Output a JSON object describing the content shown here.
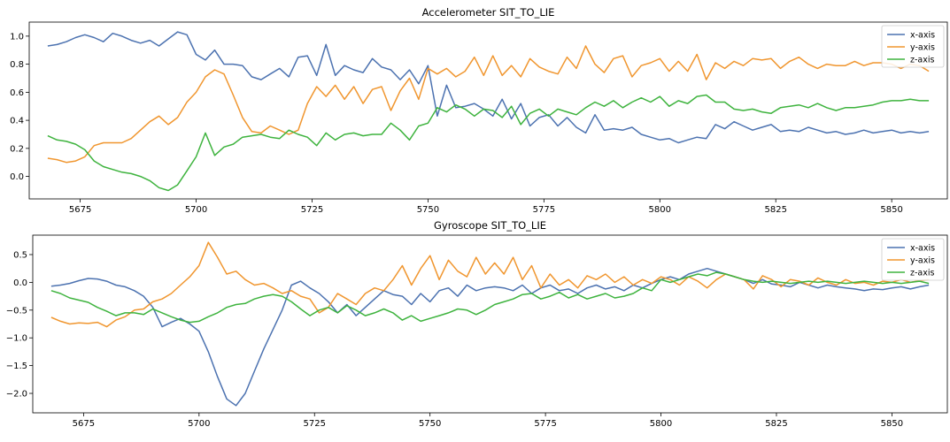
{
  "chart_data": [
    {
      "type": "line",
      "title": "Accelerometer SIT_TO_LIE",
      "xlabel": "",
      "ylabel": "",
      "xlim": [
        5664,
        5862
      ],
      "ylim": [
        -0.16,
        1.1
      ],
      "xticks": [
        5675,
        5700,
        5725,
        5750,
        5775,
        5800,
        5825,
        5850
      ],
      "yticks": [
        0.0,
        0.2,
        0.4,
        0.6,
        0.8,
        1.0
      ],
      "ytick_labels": [
        "0.0",
        "0.2",
        "0.4",
        "0.6",
        "0.8",
        "1.0"
      ],
      "grid": false,
      "legend": "top-right",
      "x": [
        5668,
        5670,
        5672,
        5674,
        5676,
        5678,
        5680,
        5682,
        5684,
        5686,
        5688,
        5690,
        5692,
        5694,
        5696,
        5698,
        5700,
        5702,
        5704,
        5706,
        5708,
        5710,
        5712,
        5714,
        5716,
        5718,
        5720,
        5722,
        5724,
        5726,
        5728,
        5730,
        5732,
        5734,
        5736,
        5738,
        5740,
        5742,
        5744,
        5746,
        5748,
        5750,
        5752,
        5754,
        5756,
        5758,
        5760,
        5762,
        5764,
        5766,
        5768,
        5770,
        5772,
        5774,
        5776,
        5778,
        5780,
        5782,
        5784,
        5786,
        5788,
        5790,
        5792,
        5794,
        5796,
        5798,
        5800,
        5802,
        5804,
        5806,
        5808,
        5810,
        5812,
        5814,
        5816,
        5818,
        5820,
        5822,
        5824,
        5826,
        5828,
        5830,
        5832,
        5834,
        5836,
        5838,
        5840,
        5842,
        5844,
        5846,
        5848,
        5850,
        5852,
        5854,
        5856,
        5858
      ],
      "series": [
        {
          "name": "x-axis",
          "color": "#4c72b0",
          "values": [
            0.93,
            0.94,
            0.96,
            0.99,
            1.01,
            0.99,
            0.96,
            1.02,
            1.0,
            0.97,
            0.95,
            0.97,
            0.93,
            0.98,
            1.03,
            1.01,
            0.87,
            0.83,
            0.9,
            0.8,
            0.8,
            0.79,
            0.71,
            0.69,
            0.73,
            0.77,
            0.71,
            0.85,
            0.86,
            0.72,
            0.94,
            0.72,
            0.79,
            0.76,
            0.74,
            0.84,
            0.78,
            0.76,
            0.69,
            0.76,
            0.66,
            0.79,
            0.43,
            0.65,
            0.49,
            0.5,
            0.52,
            0.48,
            0.43,
            0.55,
            0.41,
            0.52,
            0.36,
            0.42,
            0.44,
            0.36,
            0.42,
            0.35,
            0.31,
            0.44,
            0.33,
            0.34,
            0.33,
            0.35,
            0.3,
            0.28,
            0.26,
            0.27,
            0.24,
            0.26,
            0.28,
            0.27,
            0.37,
            0.34,
            0.39,
            0.36,
            0.33,
            0.35,
            0.37,
            0.32,
            0.33,
            0.32,
            0.35,
            0.33,
            0.31,
            0.32,
            0.3,
            0.31,
            0.33,
            0.31,
            0.32,
            0.33,
            0.31,
            0.32,
            0.31,
            0.32
          ]
        },
        {
          "name": "y-axis",
          "color": "#f0962f",
          "values": [
            0.13,
            0.12,
            0.1,
            0.11,
            0.14,
            0.22,
            0.24,
            0.24,
            0.24,
            0.27,
            0.33,
            0.39,
            0.43,
            0.37,
            0.42,
            0.53,
            0.6,
            0.71,
            0.76,
            0.73,
            0.58,
            0.42,
            0.32,
            0.31,
            0.36,
            0.33,
            0.3,
            0.33,
            0.52,
            0.64,
            0.57,
            0.65,
            0.55,
            0.64,
            0.52,
            0.62,
            0.64,
            0.47,
            0.61,
            0.7,
            0.55,
            0.77,
            0.73,
            0.77,
            0.71,
            0.75,
            0.85,
            0.72,
            0.86,
            0.72,
            0.79,
            0.71,
            0.84,
            0.78,
            0.75,
            0.73,
            0.85,
            0.77,
            0.93,
            0.8,
            0.74,
            0.84,
            0.86,
            0.71,
            0.79,
            0.81,
            0.84,
            0.75,
            0.82,
            0.75,
            0.87,
            0.69,
            0.81,
            0.77,
            0.82,
            0.79,
            0.84,
            0.83,
            0.84,
            0.77,
            0.82,
            0.85,
            0.8,
            0.77,
            0.8,
            0.79,
            0.79,
            0.82,
            0.79,
            0.81,
            0.81,
            0.8,
            0.77,
            0.8,
            0.79,
            0.75
          ]
        },
        {
          "name": "z-axis",
          "color": "#3eb33e",
          "values": [
            0.29,
            0.26,
            0.25,
            0.23,
            0.19,
            0.11,
            0.07,
            0.05,
            0.03,
            0.02,
            0.0,
            -0.03,
            -0.08,
            -0.1,
            -0.06,
            0.04,
            0.14,
            0.31,
            0.15,
            0.21,
            0.23,
            0.28,
            0.29,
            0.3,
            0.28,
            0.27,
            0.33,
            0.3,
            0.28,
            0.22,
            0.31,
            0.26,
            0.3,
            0.31,
            0.29,
            0.3,
            0.3,
            0.38,
            0.33,
            0.26,
            0.36,
            0.38,
            0.49,
            0.46,
            0.51,
            0.48,
            0.43,
            0.48,
            0.47,
            0.42,
            0.5,
            0.37,
            0.45,
            0.48,
            0.43,
            0.48,
            0.46,
            0.44,
            0.49,
            0.53,
            0.5,
            0.54,
            0.49,
            0.53,
            0.56,
            0.53,
            0.57,
            0.5,
            0.54,
            0.52,
            0.57,
            0.58,
            0.53,
            0.53,
            0.48,
            0.47,
            0.48,
            0.46,
            0.45,
            0.49,
            0.5,
            0.51,
            0.49,
            0.52,
            0.49,
            0.47,
            0.49,
            0.49,
            0.5,
            0.51,
            0.53,
            0.54,
            0.54,
            0.55,
            0.54,
            0.54
          ]
        }
      ]
    },
    {
      "type": "line",
      "title": "Gyroscope SIT_TO_LIE",
      "xlabel": "",
      "ylabel": "",
      "xlim": [
        5664,
        5862
      ],
      "ylim": [
        -2.35,
        0.85
      ],
      "xticks": [
        5675,
        5700,
        5725,
        5750,
        5775,
        5800,
        5825,
        5850
      ],
      "yticks": [
        -2.0,
        -1.5,
        -1.0,
        -0.5,
        0.0,
        0.5
      ],
      "ytick_labels": [
        "−2.0",
        "−1.5",
        "−1.0",
        "−0.5",
        "0.0",
        "0.5"
      ],
      "grid": false,
      "legend": "top-right",
      "x": [
        5668,
        5670,
        5672,
        5674,
        5676,
        5678,
        5680,
        5682,
        5684,
        5686,
        5688,
        5690,
        5692,
        5694,
        5696,
        5698,
        5700,
        5702,
        5704,
        5706,
        5708,
        5710,
        5712,
        5714,
        5716,
        5718,
        5720,
        5722,
        5724,
        5726,
        5728,
        5730,
        5732,
        5734,
        5736,
        5738,
        5740,
        5742,
        5744,
        5746,
        5748,
        5750,
        5752,
        5754,
        5756,
        5758,
        5760,
        5762,
        5764,
        5766,
        5768,
        5770,
        5772,
        5774,
        5776,
        5778,
        5780,
        5782,
        5784,
        5786,
        5788,
        5790,
        5792,
        5794,
        5796,
        5798,
        5800,
        5802,
        5804,
        5806,
        5808,
        5810,
        5812,
        5814,
        5816,
        5818,
        5820,
        5822,
        5824,
        5826,
        5828,
        5830,
        5832,
        5834,
        5836,
        5838,
        5840,
        5842,
        5844,
        5846,
        5848,
        5850,
        5852,
        5854,
        5856,
        5858
      ],
      "series": [
        {
          "name": "x-axis",
          "color": "#4c72b0",
          "values": [
            -0.07,
            -0.05,
            -0.02,
            0.03,
            0.07,
            0.06,
            0.02,
            -0.05,
            -0.08,
            -0.15,
            -0.25,
            -0.45,
            -0.8,
            -0.72,
            -0.65,
            -0.75,
            -0.88,
            -1.25,
            -1.7,
            -2.1,
            -2.22,
            -2.0,
            -1.6,
            -1.2,
            -0.85,
            -0.5,
            -0.05,
            0.02,
            -0.1,
            -0.2,
            -0.35,
            -0.55,
            -0.4,
            -0.6,
            -0.45,
            -0.3,
            -0.15,
            -0.22,
            -0.25,
            -0.4,
            -0.2,
            -0.35,
            -0.15,
            -0.1,
            -0.25,
            -0.05,
            -0.15,
            -0.1,
            -0.08,
            -0.1,
            -0.15,
            -0.05,
            -0.2,
            -0.1,
            -0.05,
            -0.15,
            -0.12,
            -0.2,
            -0.1,
            -0.05,
            -0.12,
            -0.08,
            -0.15,
            -0.05,
            -0.1,
            -0.02,
            0.05,
            0.1,
            0.05,
            0.15,
            0.2,
            0.25,
            0.2,
            0.15,
            0.1,
            0.05,
            -0.02,
            0.05,
            -0.03,
            -0.05,
            -0.08,
            0.0,
            -0.05,
            -0.1,
            -0.05,
            -0.08,
            -0.1,
            -0.12,
            -0.15,
            -0.12,
            -0.13,
            -0.1,
            -0.08,
            -0.12,
            -0.08,
            -0.05
          ]
        },
        {
          "name": "y-axis",
          "color": "#f0962f",
          "values": [
            -0.63,
            -0.7,
            -0.75,
            -0.73,
            -0.74,
            -0.72,
            -0.8,
            -0.68,
            -0.62,
            -0.5,
            -0.48,
            -0.35,
            -0.3,
            -0.2,
            -0.05,
            0.1,
            0.3,
            0.72,
            0.45,
            0.15,
            0.2,
            0.05,
            -0.05,
            -0.02,
            -0.1,
            -0.2,
            -0.15,
            -0.25,
            -0.3,
            -0.55,
            -0.45,
            -0.2,
            -0.3,
            -0.4,
            -0.2,
            -0.1,
            -0.15,
            0.05,
            0.3,
            -0.05,
            0.25,
            0.48,
            0.05,
            0.4,
            0.2,
            0.1,
            0.45,
            0.15,
            0.35,
            0.15,
            0.45,
            0.05,
            0.3,
            -0.1,
            0.15,
            -0.05,
            0.05,
            -0.1,
            0.12,
            0.05,
            0.15,
            0.0,
            0.1,
            -0.05,
            0.05,
            -0.02,
            0.1,
            0.05,
            -0.05,
            0.1,
            0.02,
            -0.1,
            0.05,
            0.15,
            0.1,
            0.05,
            -0.12,
            0.12,
            0.05,
            -0.08,
            0.05,
            0.02,
            -0.05,
            0.08,
            0.0,
            -0.05,
            0.05,
            -0.02,
            0.0,
            -0.05,
            0.02,
            0.0,
            0.05,
            0.0,
            0.03,
            0.05
          ]
        },
        {
          "name": "z-axis",
          "color": "#3eb33e",
          "values": [
            -0.15,
            -0.2,
            -0.28,
            -0.32,
            -0.36,
            -0.45,
            -0.52,
            -0.6,
            -0.55,
            -0.55,
            -0.58,
            -0.48,
            -0.55,
            -0.62,
            -0.68,
            -0.72,
            -0.7,
            -0.62,
            -0.55,
            -0.45,
            -0.4,
            -0.38,
            -0.3,
            -0.25,
            -0.22,
            -0.25,
            -0.35,
            -0.48,
            -0.6,
            -0.5,
            -0.45,
            -0.55,
            -0.42,
            -0.5,
            -0.6,
            -0.55,
            -0.48,
            -0.55,
            -0.68,
            -0.6,
            -0.7,
            -0.65,
            -0.6,
            -0.55,
            -0.48,
            -0.5,
            -0.58,
            -0.5,
            -0.4,
            -0.35,
            -0.3,
            -0.22,
            -0.2,
            -0.3,
            -0.25,
            -0.18,
            -0.28,
            -0.22,
            -0.3,
            -0.25,
            -0.2,
            -0.28,
            -0.25,
            -0.2,
            -0.1,
            -0.15,
            0.05,
            0.0,
            0.05,
            0.1,
            0.15,
            0.12,
            0.18,
            0.15,
            0.1,
            0.05,
            0.02,
            0.0,
            0.02,
            0.0,
            -0.02,
            0.0,
            0.02,
            0.0,
            0.02,
            0.0,
            -0.02,
            0.0,
            0.02,
            0.0,
            -0.02,
            0.0,
            -0.02,
            0.0,
            0.02,
            -0.02
          ]
        }
      ]
    }
  ]
}
